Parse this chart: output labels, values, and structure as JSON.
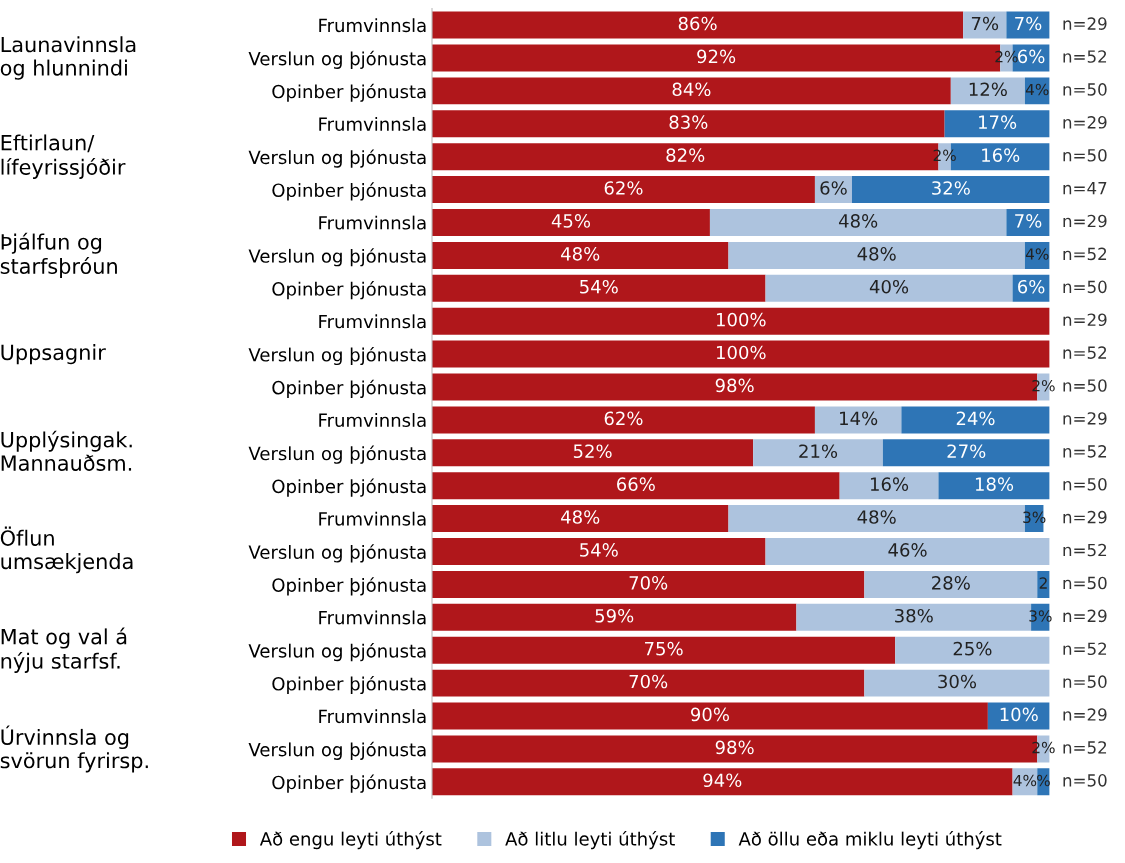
{
  "chart_data": {
    "type": "bar",
    "orientation": "horizontal",
    "stacked": true,
    "legend": "bottom",
    "categories": [
      "Frumvinnsla",
      "Verslun og þjónusta",
      "Opinber þjónusta",
      "Frumvinnsla",
      "Verslun og þjónusta",
      "Opinber þjónusta",
      "Frumvinnsla",
      "Verslun og þjónusta",
      "Opinber þjónusta",
      "Frumvinnsla",
      "Verslun og þjónusta",
      "Opinber þjónusta",
      "Frumvinnsla",
      "Verslun og þjónusta",
      "Opinber þjónusta",
      "Frumvinnsla",
      "Verslun og þjónusta",
      "Opinber þjónusta",
      "Frumvinnsla",
      "Verslun og þjónusta",
      "Opinber þjónusta",
      "Frumvinnsla",
      "Verslun og þjónusta",
      "Opinber þjónusta"
    ],
    "series": [
      {
        "name": "Að engu leyti úthýst",
        "color": "#b0171b",
        "values": [
          86,
          92,
          84,
          83,
          82,
          62,
          45,
          48,
          54,
          100,
          100,
          98,
          62,
          52,
          66,
          48,
          54,
          70,
          59,
          75,
          70,
          90,
          98,
          94
        ],
        "value_labels": [
          "86%",
          "92%",
          "84%",
          "83%",
          "82%",
          "62%",
          "45%",
          "48%",
          "54%",
          "100%",
          "100%",
          "98%",
          "62%",
          "52%",
          "66%",
          "48%",
          "54%",
          "70%",
          "59%",
          "75%",
          "70%",
          "90%",
          "98%",
          "94%"
        ]
      },
      {
        "name": "Að litlu leyti úthýst",
        "color": "#adc3de",
        "values": [
          7,
          2,
          12,
          0,
          2,
          6,
          48,
          48,
          40,
          0,
          0,
          2,
          14,
          21,
          16,
          48,
          46,
          28,
          38,
          25,
          30,
          0,
          2,
          4
        ],
        "value_labels": [
          "7%",
          "2%",
          "12%",
          null,
          "2%",
          "6%",
          "48%",
          "48%",
          "40%",
          null,
          null,
          "2%",
          "14%",
          "21%",
          "16%",
          "48%",
          "46%",
          "28%",
          "38%",
          "25%",
          "30%",
          null,
          "2%",
          "4%"
        ]
      },
      {
        "name": "Að öllu eða miklu leyti úthýst",
        "color": "#2e75b6",
        "values": [
          7,
          6,
          4,
          17,
          16,
          32,
          7,
          4,
          6,
          0,
          0,
          0,
          24,
          27,
          18,
          3,
          0,
          2,
          3,
          0,
          0,
          10,
          0,
          2
        ],
        "value_labels": [
          "7%",
          "6%",
          "4%",
          "17%",
          "16%",
          "32%",
          "7%",
          "4%",
          "6%",
          null,
          null,
          null,
          "24%",
          "27%",
          "18%",
          "3%",
          null,
          "2",
          "3%",
          null,
          null,
          "10%",
          null,
          "%"
        ]
      }
    ],
    "annotations": [
      "Launavinnsla\nog hlunnindi",
      "Eftirlaun/\nlífeyrissjóðir",
      "Þjálfun og\nstarfsþróun",
      "Uppsagnir",
      "Upplýsingak.\nMannauðsm.",
      "Öflun\numsækjenda",
      "Mat og val á\nnýju starfsf.",
      "Úrvinnsla og\nsvörun fyrirsp.",
      "n=29",
      "n=52",
      "n=50",
      "n=29",
      "n=50",
      "n=47",
      "n=29",
      "n=52",
      "n=50",
      "n=29",
      "n=52",
      "n=50",
      "n=29",
      "n=52",
      "n=50",
      "n=29",
      "n=52",
      "n=50",
      "n=29",
      "n=52",
      "n=50",
      "n=29",
      "n=52",
      "n=50"
    ]
  }
}
